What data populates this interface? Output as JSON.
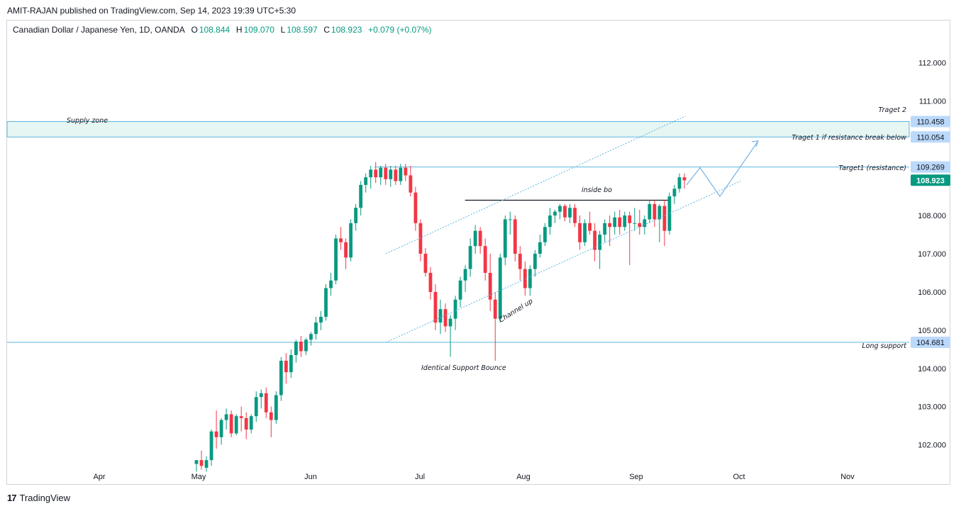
{
  "header": {
    "published_by": "AMIT-RAJAN published on TradingView.com, Sep 14, 2023 19:39 UTC+5:30"
  },
  "symbol": {
    "name": "Canadian Dollar / Japanese Yen, 1D, OANDA",
    "open_label": "O",
    "open": "108.844",
    "high_label": "H",
    "high": "109.070",
    "low_label": "L",
    "low": "108.597",
    "close_label": "C",
    "close": "108.923",
    "change": "+0.079 (+0.07%)"
  },
  "footer": {
    "brand": "TradingView",
    "logo": "17"
  },
  "colors": {
    "up": "#089981",
    "down": "#f23645",
    "level": "#5eb4e0",
    "zone": "#e6f6f3",
    "tag": "#bbd9fb"
  },
  "chart_data": {
    "type": "candlestick",
    "title": "Canadian Dollar / Japanese Yen, 1D, OANDA",
    "x_ticks": [
      "Apr",
      "May",
      "Jun",
      "Jul",
      "Aug",
      "Sep",
      "Oct",
      "Nov"
    ],
    "y_ticks": [
      "112.000",
      "111.000",
      "110.000",
      "109.000",
      "108.000",
      "107.000",
      "106.000",
      "105.000",
      "104.000",
      "103.000",
      "102.000"
    ],
    "y_range": [
      101.4,
      113.1
    ],
    "x_range": [
      "2023-03-09",
      "2023-11-26"
    ],
    "price_tags": [
      {
        "value": "110.458",
        "style": "level"
      },
      {
        "value": "110.054",
        "style": "level"
      },
      {
        "value": "109.269",
        "style": "level"
      },
      {
        "value": "108.923",
        "style": "last"
      },
      {
        "value": "104.681",
        "style": "level"
      }
    ],
    "annotations": [
      "Supply zone",
      "Traget 2",
      "Traget 1 if resistance break below",
      "Target1 (resistance)",
      "inside bo",
      "Channel up",
      "Long support",
      "Identical Support Bounce"
    ],
    "levels": {
      "supply_zone": [
        110.054,
        110.458
      ],
      "target1": 109.269,
      "long_support": 104.681,
      "inside_bar_line": 108.4
    },
    "candles": [
      {
        "t": "2023-05-01",
        "o": 101.5,
        "h": 101.6,
        "l": 101.3,
        "c": 101.6
      },
      {
        "t": "2023-05-02",
        "o": 101.6,
        "h": 101.85,
        "l": 101.35,
        "c": 101.45
      },
      {
        "t": "2023-05-13",
        "o": 101.4,
        "h": 101.7,
        "l": 101.3,
        "c": 101.6
      },
      {
        "t": "2023-05-14",
        "o": 101.6,
        "h": 102.4,
        "l": 101.45,
        "c": 102.35
      },
      {
        "t": "2023-05-15",
        "o": 102.35,
        "h": 102.9,
        "l": 101.9,
        "c": 102.2
      },
      {
        "t": "2023-05-16",
        "o": 102.2,
        "h": 102.7,
        "l": 102.0,
        "c": 102.65
      },
      {
        "t": "2023-05-17",
        "o": 102.65,
        "h": 102.95,
        "l": 102.4,
        "c": 102.8
      },
      {
        "t": "2023-05-18",
        "o": 102.8,
        "h": 102.9,
        "l": 102.2,
        "c": 102.3
      },
      {
        "t": "2023-05-19",
        "o": 102.3,
        "h": 102.8,
        "l": 102.25,
        "c": 102.75
      },
      {
        "t": "2023-05-20",
        "o": 102.75,
        "h": 103.0,
        "l": 102.35,
        "c": 102.7
      },
      {
        "t": "2023-05-21",
        "o": 102.7,
        "h": 102.85,
        "l": 102.15,
        "c": 102.4
      },
      {
        "t": "2023-05-22",
        "o": 102.4,
        "h": 102.8,
        "l": 102.3,
        "c": 102.75
      },
      {
        "t": "2023-05-23",
        "o": 102.75,
        "h": 103.4,
        "l": 102.6,
        "c": 103.25
      },
      {
        "t": "2023-05-24",
        "o": 103.25,
        "h": 103.45,
        "l": 102.95,
        "c": 103.35
      },
      {
        "t": "2023-05-25",
        "o": 103.35,
        "h": 103.5,
        "l": 102.7,
        "c": 102.85
      },
      {
        "t": "2023-05-26",
        "o": 102.85,
        "h": 103.0,
        "l": 102.2,
        "c": 102.65
      },
      {
        "t": "2023-05-27",
        "o": 102.65,
        "h": 103.4,
        "l": 102.55,
        "c": 103.3
      },
      {
        "t": "2023-05-28",
        "o": 103.3,
        "h": 104.3,
        "l": 103.15,
        "c": 104.2
      },
      {
        "t": "2023-05-29",
        "o": 104.2,
        "h": 104.4,
        "l": 103.6,
        "c": 103.9
      },
      {
        "t": "2023-05-30",
        "o": 103.9,
        "h": 104.5,
        "l": 103.75,
        "c": 104.35
      },
      {
        "t": "2023-05-31",
        "o": 104.35,
        "h": 104.75,
        "l": 104.15,
        "c": 104.7
      },
      {
        "t": "2023-06-01",
        "o": 104.7,
        "h": 104.85,
        "l": 104.3,
        "c": 104.45
      },
      {
        "t": "2023-06-02",
        "o": 104.45,
        "h": 104.8,
        "l": 104.35,
        "c": 104.75
      },
      {
        "t": "2023-06-03",
        "o": 104.75,
        "h": 104.95,
        "l": 104.6,
        "c": 104.9
      },
      {
        "t": "2023-06-04",
        "o": 104.9,
        "h": 105.35,
        "l": 104.75,
        "c": 105.2
      },
      {
        "t": "2023-06-05",
        "o": 105.2,
        "h": 105.5,
        "l": 105.0,
        "c": 105.35
      },
      {
        "t": "2023-06-06",
        "o": 105.35,
        "h": 106.2,
        "l": 105.25,
        "c": 106.1
      },
      {
        "t": "2023-06-07",
        "o": 106.1,
        "h": 106.5,
        "l": 105.9,
        "c": 106.3
      },
      {
        "t": "2023-06-08",
        "o": 106.3,
        "h": 107.5,
        "l": 106.2,
        "c": 107.4
      },
      {
        "t": "2023-06-09",
        "o": 107.4,
        "h": 107.7,
        "l": 107.1,
        "c": 107.3
      },
      {
        "t": "2023-06-10",
        "o": 107.3,
        "h": 107.4,
        "l": 106.6,
        "c": 106.9
      },
      {
        "t": "2023-06-11",
        "o": 106.9,
        "h": 107.9,
        "l": 106.8,
        "c": 107.8
      },
      {
        "t": "2023-06-12",
        "o": 107.8,
        "h": 108.3,
        "l": 107.6,
        "c": 108.2
      },
      {
        "t": "2023-06-13",
        "o": 108.2,
        "h": 108.9,
        "l": 108.0,
        "c": 108.8
      },
      {
        "t": "2023-06-14",
        "o": 108.8,
        "h": 109.1,
        "l": 108.6,
        "c": 109.0
      },
      {
        "t": "2023-06-15",
        "o": 109.0,
        "h": 109.3,
        "l": 108.7,
        "c": 109.2
      },
      {
        "t": "2023-06-16",
        "o": 109.2,
        "h": 109.4,
        "l": 108.85,
        "c": 109.0
      },
      {
        "t": "2023-06-17",
        "o": 109.0,
        "h": 109.3,
        "l": 108.8,
        "c": 109.25
      },
      {
        "t": "2023-06-18",
        "o": 109.25,
        "h": 109.35,
        "l": 108.8,
        "c": 108.95
      },
      {
        "t": "2023-06-19",
        "o": 108.95,
        "h": 109.3,
        "l": 108.75,
        "c": 109.2
      },
      {
        "t": "2023-06-20",
        "o": 109.2,
        "h": 109.3,
        "l": 108.8,
        "c": 108.9
      },
      {
        "t": "2023-06-21",
        "o": 108.9,
        "h": 109.35,
        "l": 108.8,
        "c": 109.25
      },
      {
        "t": "2023-06-22",
        "o": 109.25,
        "h": 109.35,
        "l": 108.9,
        "c": 109.05
      },
      {
        "t": "2023-06-23",
        "o": 109.05,
        "h": 109.3,
        "l": 108.5,
        "c": 108.6
      },
      {
        "t": "2023-06-24",
        "o": 108.6,
        "h": 108.75,
        "l": 107.6,
        "c": 107.8
      },
      {
        "t": "2023-06-25",
        "o": 107.8,
        "h": 107.9,
        "l": 106.8,
        "c": 107.0
      },
      {
        "t": "2023-06-26",
        "o": 107.0,
        "h": 107.15,
        "l": 106.4,
        "c": 106.5
      },
      {
        "t": "2023-06-27",
        "o": 106.5,
        "h": 106.65,
        "l": 105.8,
        "c": 106.0
      },
      {
        "t": "2023-06-28",
        "o": 106.0,
        "h": 106.2,
        "l": 105.0,
        "c": 105.2
      },
      {
        "t": "2023-06-29",
        "o": 105.2,
        "h": 105.8,
        "l": 104.9,
        "c": 105.55
      },
      {
        "t": "2023-06-30",
        "o": 105.55,
        "h": 105.7,
        "l": 104.95,
        "c": 105.1
      },
      {
        "t": "2023-07-01",
        "o": 105.1,
        "h": 105.4,
        "l": 104.3,
        "c": 105.3
      },
      {
        "t": "2023-07-02",
        "o": 105.3,
        "h": 105.9,
        "l": 105.0,
        "c": 105.8
      },
      {
        "t": "2023-07-03",
        "o": 105.8,
        "h": 106.4,
        "l": 105.6,
        "c": 106.3
      },
      {
        "t": "2023-07-04",
        "o": 106.3,
        "h": 106.7,
        "l": 106.0,
        "c": 106.6
      },
      {
        "t": "2023-07-05",
        "o": 106.6,
        "h": 107.4,
        "l": 106.4,
        "c": 107.2
      },
      {
        "t": "2023-07-06",
        "o": 107.2,
        "h": 107.75,
        "l": 107.0,
        "c": 107.6
      },
      {
        "t": "2023-07-07",
        "o": 107.6,
        "h": 107.7,
        "l": 107.0,
        "c": 107.2
      },
      {
        "t": "2023-07-08",
        "o": 107.2,
        "h": 107.4,
        "l": 106.3,
        "c": 106.5
      },
      {
        "t": "2023-07-09",
        "o": 106.5,
        "h": 107.0,
        "l": 105.5,
        "c": 105.8
      },
      {
        "t": "2023-07-10",
        "o": 105.8,
        "h": 106.0,
        "l": 104.2,
        "c": 105.3
      },
      {
        "t": "2023-07-11",
        "o": 105.3,
        "h": 107.0,
        "l": 105.2,
        "c": 106.9
      },
      {
        "t": "2023-07-12",
        "o": 106.9,
        "h": 108.0,
        "l": 106.7,
        "c": 107.9
      },
      {
        "t": "2023-07-13",
        "o": 107.9,
        "h": 108.1,
        "l": 107.5,
        "c": 107.9
      },
      {
        "t": "2023-07-14",
        "o": 107.9,
        "h": 108.0,
        "l": 106.8,
        "c": 107.0
      },
      {
        "t": "2023-07-15",
        "o": 107.0,
        "h": 107.2,
        "l": 106.3,
        "c": 106.6
      },
      {
        "t": "2023-07-16",
        "o": 106.6,
        "h": 106.8,
        "l": 105.9,
        "c": 106.1
      },
      {
        "t": "2023-07-17",
        "o": 106.1,
        "h": 106.7,
        "l": 105.9,
        "c": 106.6
      },
      {
        "t": "2023-07-18",
        "o": 106.6,
        "h": 107.1,
        "l": 106.4,
        "c": 107.0
      },
      {
        "t": "2023-07-19",
        "o": 107.0,
        "h": 107.5,
        "l": 106.9,
        "c": 107.3
      },
      {
        "t": "2023-07-20",
        "o": 107.3,
        "h": 107.8,
        "l": 107.2,
        "c": 107.7
      },
      {
        "t": "2023-07-21",
        "o": 107.7,
        "h": 108.2,
        "l": 107.5,
        "c": 108.0
      },
      {
        "t": "2023-07-22",
        "o": 108.0,
        "h": 108.15,
        "l": 107.8,
        "c": 108.1
      },
      {
        "t": "2023-07-23",
        "o": 108.1,
        "h": 108.3,
        "l": 107.9,
        "c": 108.25
      },
      {
        "t": "2023-07-24",
        "o": 108.25,
        "h": 108.3,
        "l": 107.85,
        "c": 107.95
      },
      {
        "t": "2023-07-25",
        "o": 107.95,
        "h": 108.3,
        "l": 107.8,
        "c": 108.2
      },
      {
        "t": "2023-07-26",
        "o": 108.2,
        "h": 108.3,
        "l": 107.7,
        "c": 107.8
      },
      {
        "t": "2023-07-27",
        "o": 107.8,
        "h": 108.0,
        "l": 107.1,
        "c": 107.3
      },
      {
        "t": "2023-07-28",
        "o": 107.3,
        "h": 107.9,
        "l": 107.2,
        "c": 107.8
      },
      {
        "t": "2023-07-29",
        "o": 107.8,
        "h": 108.1,
        "l": 107.5,
        "c": 107.6
      },
      {
        "t": "2023-07-30",
        "o": 107.6,
        "h": 107.8,
        "l": 106.8,
        "c": 107.1
      },
      {
        "t": "2023-07-31",
        "o": 107.1,
        "h": 107.6,
        "l": 106.6,
        "c": 107.5
      },
      {
        "t": "2023-08-01",
        "o": 107.5,
        "h": 107.9,
        "l": 107.3,
        "c": 107.8
      },
      {
        "t": "2023-08-02",
        "o": 107.8,
        "h": 108.0,
        "l": 107.2,
        "c": 107.7
      },
      {
        "t": "2023-08-03",
        "o": 107.7,
        "h": 108.1,
        "l": 107.5,
        "c": 107.95
      },
      {
        "t": "2023-08-04",
        "o": 107.95,
        "h": 108.15,
        "l": 107.5,
        "c": 107.7
      },
      {
        "t": "2023-08-05",
        "o": 107.7,
        "h": 108.1,
        "l": 107.6,
        "c": 108.0
      },
      {
        "t": "2023-08-06",
        "o": 108.0,
        "h": 108.1,
        "l": 106.7,
        "c": 107.8
      },
      {
        "t": "2023-08-07",
        "o": 107.8,
        "h": 108.2,
        "l": 107.6,
        "c": 107.8
      },
      {
        "t": "2023-08-08",
        "o": 107.8,
        "h": 108.15,
        "l": 107.5,
        "c": 107.7
      },
      {
        "t": "2023-08-09",
        "o": 107.7,
        "h": 108.0,
        "l": 107.5,
        "c": 107.9
      },
      {
        "t": "2023-08-10",
        "o": 107.9,
        "h": 108.4,
        "l": 107.8,
        "c": 108.3
      },
      {
        "t": "2023-08-11",
        "o": 108.3,
        "h": 108.4,
        "l": 107.7,
        "c": 107.9
      },
      {
        "t": "2023-08-12",
        "o": 107.9,
        "h": 108.3,
        "l": 107.3,
        "c": 108.25
      },
      {
        "t": "2023-08-13",
        "o": 108.25,
        "h": 108.4,
        "l": 107.2,
        "c": 107.6
      },
      {
        "t": "2023-08-14",
        "o": 107.6,
        "h": 108.6,
        "l": 107.5,
        "c": 108.5
      },
      {
        "t": "2023-08-15",
        "o": 108.5,
        "h": 108.8,
        "l": 108.3,
        "c": 108.7
      },
      {
        "t": "2023-08-16",
        "o": 108.7,
        "h": 109.1,
        "l": 108.6,
        "c": 109.0
      },
      {
        "t": "2023-08-17",
        "o": 109.0,
        "h": 109.1,
        "l": 108.7,
        "c": 108.92
      }
    ],
    "projection_path": [
      {
        "t": "2023-08-18",
        "v": 108.8
      },
      {
        "t": "2023-08-27",
        "v": 109.25
      },
      {
        "t": "2023-09-09",
        "v": 108.5
      },
      {
        "t": "2023-09-27",
        "v": 109.95
      }
    ]
  }
}
